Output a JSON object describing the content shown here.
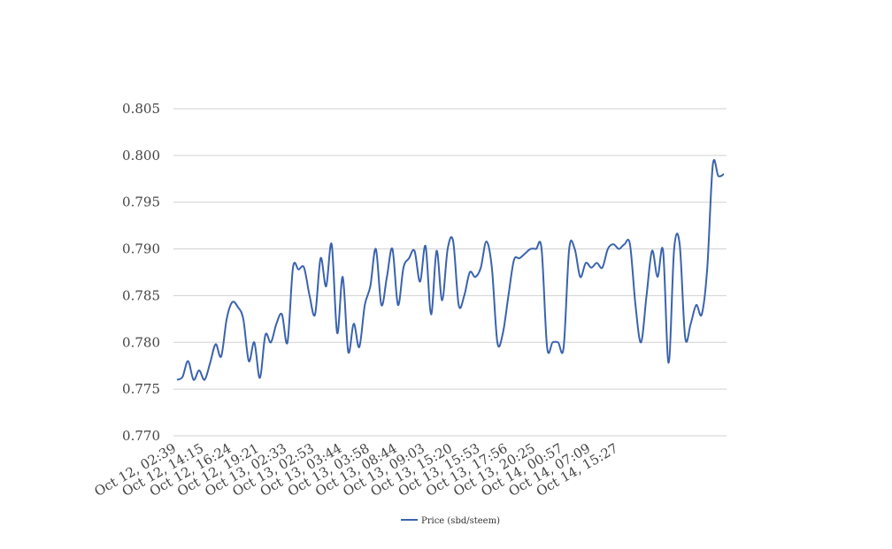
{
  "chart_data": {
    "type": "line",
    "title": "",
    "xlabel": "",
    "ylabel": "",
    "ylim": [
      0.77,
      0.805
    ],
    "y_ticks": [
      "0.770",
      "0.775",
      "0.780",
      "0.785",
      "0.790",
      "0.795",
      "0.800",
      "0.805"
    ],
    "x_tick_labels": [
      "Oct 12, 02:39",
      "Oct 12, 14:15",
      "Oct 12, 16:24",
      "Oct 12, 19:21",
      "Oct 13, 02:33",
      "Oct 13, 02:53",
      "Oct 13, 03:44",
      "Oct 13, 03:58",
      "Oct 13, 08:44",
      "Oct 13, 09:03",
      "Oct 13, 15:20",
      "Oct 13, 15:53",
      "Oct 13, 17:56",
      "Oct 13, 20:25",
      "Oct 14, 00:57",
      "Oct 14, 07:09",
      "Oct 14, 15:27"
    ],
    "x_tick_every": 5,
    "grid": true,
    "legend_position": "bottom",
    "series": [
      {
        "name": "Price (sbd/steem)",
        "color": "#3a63ad",
        "values": [
          0.776,
          0.7763,
          0.778,
          0.776,
          0.777,
          0.776,
          0.7778,
          0.7798,
          0.7785,
          0.7825,
          0.7843,
          0.7838,
          0.7825,
          0.778,
          0.78,
          0.7762,
          0.7808,
          0.78,
          0.782,
          0.783,
          0.78,
          0.788,
          0.7878,
          0.788,
          0.785,
          0.783,
          0.789,
          0.786,
          0.7905,
          0.781,
          0.787,
          0.779,
          0.782,
          0.7795,
          0.784,
          0.786,
          0.79,
          0.784,
          0.787,
          0.79,
          0.784,
          0.788,
          0.789,
          0.7898,
          0.7865,
          0.7903,
          0.783,
          0.7898,
          0.7845,
          0.79,
          0.7908,
          0.784,
          0.785,
          0.7875,
          0.787,
          0.788,
          0.7908,
          0.788,
          0.78,
          0.781,
          0.785,
          0.7888,
          0.789,
          0.7895,
          0.79,
          0.79,
          0.79,
          0.7795,
          0.78,
          0.78,
          0.7795,
          0.79,
          0.79,
          0.787,
          0.7885,
          0.788,
          0.7885,
          0.788,
          0.79,
          0.7905,
          0.79,
          0.7905,
          0.7905,
          0.784,
          0.78,
          0.785,
          0.7898,
          0.787,
          0.7898,
          0.7778,
          0.79,
          0.7905,
          0.7805,
          0.782,
          0.784,
          0.783,
          0.788,
          0.799,
          0.7978,
          0.798
        ]
      }
    ]
  }
}
